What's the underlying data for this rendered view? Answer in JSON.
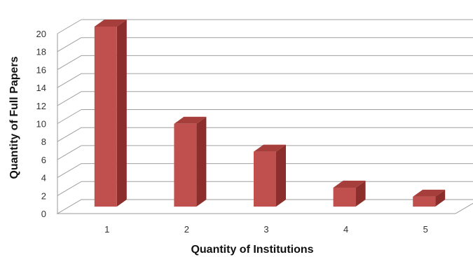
{
  "chart_data": {
    "type": "bar",
    "categories": [
      "1",
      "2",
      "3",
      "4",
      "5"
    ],
    "values": [
      20,
      9.2,
      6.1,
      2.1,
      1.1
    ],
    "ylim": [
      0,
      20
    ],
    "yticks": [
      "0",
      "2",
      "4",
      "6",
      "8",
      "10",
      "12",
      "14",
      "16",
      "18",
      "20"
    ],
    "xlabel": "Quantity of Institutions",
    "ylabel": "Quantity of Full Papers",
    "grid": true,
    "bar_color": "#c0504d",
    "bar_side_color": "#8c2f2c",
    "bar_top_color": "#a63e3b"
  }
}
